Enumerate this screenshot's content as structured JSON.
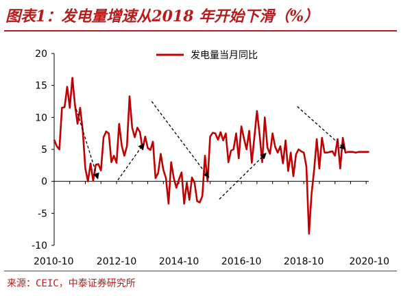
{
  "header": {
    "title": "图表1：发电量增速从2018 年开始下滑（%）"
  },
  "footer": {
    "source": "来源：CEIC，中泰证券研究所"
  },
  "colors": {
    "accent": "#b81b1b",
    "series": "#c00000",
    "arrows": "#000000"
  },
  "chart_data": {
    "type": "line",
    "title": "",
    "xlabel": "",
    "ylabel": "",
    "ylim": [
      -10,
      20
    ],
    "yticks": [
      20,
      15,
      10,
      5,
      0,
      -5,
      -10
    ],
    "xtick_labels": [
      "2010-10",
      "2012-10",
      "2014-10",
      "2016-10",
      "2018-10",
      "2020-10"
    ],
    "xrange": [
      0,
      121
    ],
    "xtick_positions": [
      0,
      24,
      48,
      72,
      96,
      120
    ],
    "grid": false,
    "legend": {
      "placement": "top-center",
      "entries": [
        "发电量当月同比"
      ]
    },
    "series": [
      {
        "name": "发电量当月同比",
        "x": [
          0,
          1,
          2,
          3,
          4,
          5,
          6,
          7,
          8,
          9,
          10,
          11,
          12,
          13,
          14,
          15,
          16,
          17,
          18,
          19,
          20,
          21,
          22,
          23,
          24,
          25,
          26,
          27,
          28,
          29,
          30,
          31,
          32,
          33,
          34,
          35,
          36,
          37,
          38,
          39,
          40,
          41,
          42,
          43,
          44,
          45,
          46,
          47,
          48,
          49,
          50,
          51,
          52,
          53,
          54,
          55,
          56,
          57,
          58,
          59,
          60,
          61,
          62,
          63,
          64,
          65,
          66,
          67,
          68,
          69,
          70,
          71,
          72,
          73,
          74,
          75,
          76,
          77,
          78,
          79,
          80,
          81,
          82,
          83,
          84,
          85,
          86,
          87,
          88,
          89,
          90,
          91,
          92,
          93,
          94,
          95,
          96,
          97,
          98,
          99,
          100,
          101,
          102,
          103,
          104,
          105,
          106,
          107,
          108,
          109,
          110,
          111,
          112,
          113,
          114,
          115,
          116,
          117,
          118,
          119,
          120,
          121
        ],
        "values": [
          6.5,
          5.5,
          5.0,
          11.5,
          11.6,
          14.8,
          11.5,
          16.2,
          12.0,
          9.0,
          11.5,
          8.0,
          2.0,
          0.0,
          2.8,
          0.1,
          2.6,
          2.7,
          1.7,
          6.9,
          7.8,
          7.5,
          3.0,
          4.0,
          2.9,
          9.0,
          5.6,
          4.0,
          5.5,
          13.3,
          8.4,
          6.9,
          8.4,
          7.7,
          5.0,
          7.0,
          5.2,
          4.9,
          6.2,
          0.5,
          1.3,
          4.3,
          1.8,
          0.5,
          -3.5,
          3.0,
          0.5,
          -1.0,
          0.3,
          1.4,
          -3.5,
          -0.2,
          -2.9,
          0.6,
          -0.2,
          -3.1,
          -3.3,
          -2.3,
          4.0,
          0.0,
          7.0,
          7.6,
          7.5,
          6.5,
          7.7,
          6.4,
          7.5,
          3.0,
          4.8,
          5.0,
          7.5,
          3.6,
          8.6,
          6.7,
          5.0,
          7.9,
          2.9,
          6.9,
          11.0,
          7.3,
          3.0,
          10.0,
          5.3,
          4.3,
          7.5,
          5.4,
          4.5,
          5.5,
          2.8,
          6.4,
          1.6,
          4.5,
          0.8,
          4.2,
          5.0,
          4.7,
          4.5,
          2.3,
          -8.2,
          -2.0,
          1.8,
          6.6,
          2.0,
          6.8,
          4.5,
          4.5,
          4.6,
          4.7,
          4.0,
          6.6,
          2.0,
          6.8,
          4.5,
          4.6,
          4.6,
          4.6,
          4.5,
          4.6,
          4.6,
          4.6,
          4.6,
          4.6
        ]
      }
    ]
  }
}
